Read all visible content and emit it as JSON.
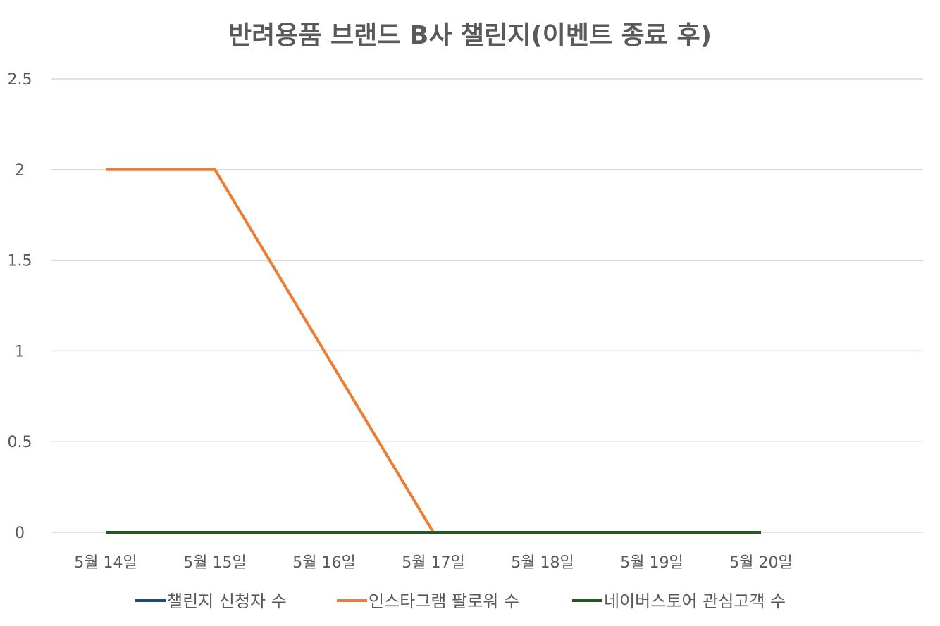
{
  "chart_data": {
    "type": "line",
    "title": "반려용품 브랜드 B사 챌린지(이벤트 종료 후)",
    "xlabel": "",
    "ylabel": "",
    "categories": [
      "5월 14일",
      "5월 15일",
      "5월 16일",
      "5월 17일",
      "5월 18일",
      "5월 19일",
      "5월 20일"
    ],
    "ylim": [
      0,
      2.5
    ],
    "yticks": [
      "0",
      "0.5",
      "1",
      "1.5",
      "2",
      "2.5"
    ],
    "ytick_values": [
      0,
      0.5,
      1,
      1.5,
      2,
      2.5
    ],
    "grid": true,
    "legend_position": "bottom",
    "series": [
      {
        "name": "챌린지 신청자 수",
        "color": "#1f4e79",
        "values": [
          0,
          0,
          0,
          0,
          0,
          0,
          0
        ]
      },
      {
        "name": "인스타그램 팔로워 수",
        "color": "#ed7d31",
        "values": [
          2,
          2,
          1,
          0,
          0,
          0,
          0
        ]
      },
      {
        "name": "네이버스토어 관심고객 수",
        "color": "#1e5c1e",
        "values": [
          0,
          0,
          0,
          0,
          0,
          0,
          0
        ]
      }
    ]
  }
}
